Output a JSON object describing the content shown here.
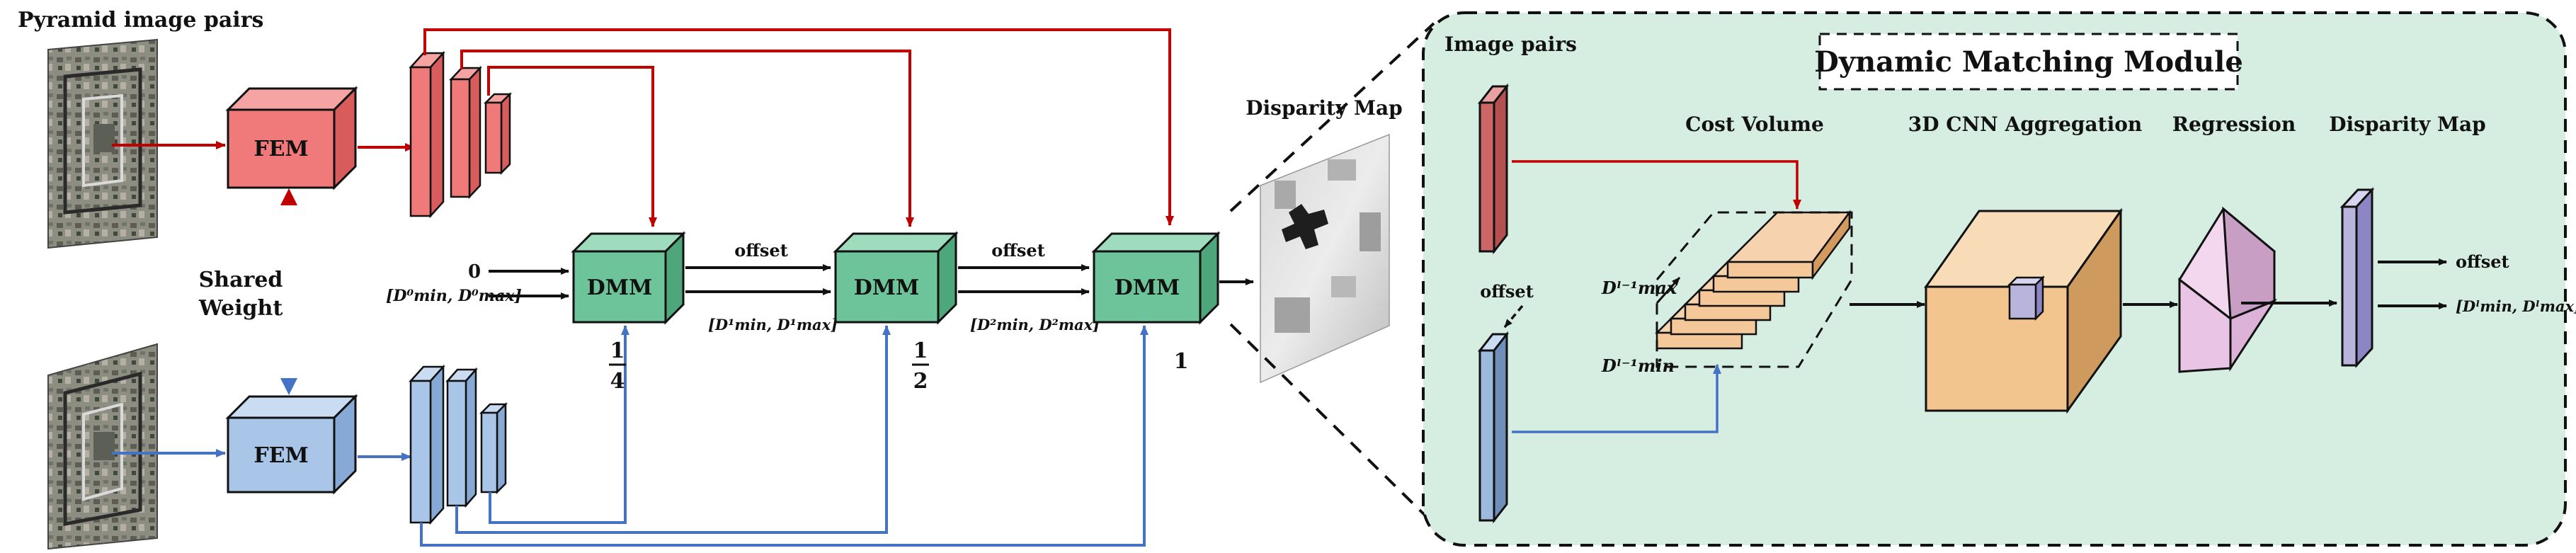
{
  "left": {
    "pyramid_title": "Pyramid image pairs",
    "fem_top": "FEM",
    "fem_bottom": "FEM",
    "shared_weight_1": "Shared",
    "shared_weight_2": "Weight",
    "input_zero": "0",
    "dmm_1": "DMM",
    "dmm_2": "DMM",
    "dmm_3": "DMM",
    "offset_1": "offset",
    "offset_2": "offset",
    "scale_1_num": "1",
    "scale_1_den": "4",
    "scale_2_num": "1",
    "scale_2_den": "2",
    "scale_3": "1",
    "range_in": "[D⁰min, D⁰max]",
    "range_1": "[D¹min, D¹max]",
    "range_2": "[D²min, D²max]",
    "disparity_map_title": "Disparity Map"
  },
  "module": {
    "title": "Dynamic Matching Module",
    "image_pairs": "Image pairs",
    "cost_volume": "Cost Volume",
    "cnn_aggregation": "3D CNN Aggregation",
    "regression": "Regression",
    "disparity_map": "Disparity Map",
    "offset_in": "offset",
    "offset_out": "offset",
    "dmax": "Dˡ⁻¹max",
    "dmin": "Dˡ⁻¹min",
    "range_out": "[Dˡmin, Dˡmax]"
  },
  "colors": {
    "red": "#c00000",
    "blue": "#4472c4",
    "fem_red": "#f07a7a",
    "fem_blue": "#a9c5e8",
    "dmm_green": "#6ec49a",
    "panel_bg": "#d6ede2",
    "cost_orange": "#f5c89a",
    "cnn_orange": "#f3c58e",
    "reg_pink": "#e9c4e4",
    "disp_lavender": "#b8b4dc"
  }
}
